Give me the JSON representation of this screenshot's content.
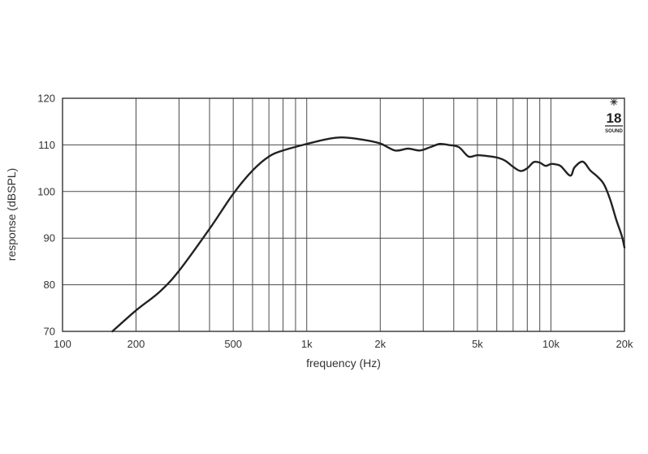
{
  "chart_data": {
    "type": "line",
    "title": "",
    "xlabel": "frequency (Hz)",
    "ylabel": "response (dBSPL)",
    "x_scale": "log",
    "xlim": [
      100,
      20000
    ],
    "ylim": [
      70,
      120
    ],
    "grid": true,
    "legend": "none",
    "x_ticks": [
      {
        "value": 100,
        "label": "100"
      },
      {
        "value": 200,
        "label": "200"
      },
      {
        "value": 500,
        "label": "500"
      },
      {
        "value": 1000,
        "label": "1k"
      },
      {
        "value": 2000,
        "label": "2k"
      },
      {
        "value": 5000,
        "label": "5k"
      },
      {
        "value": 10000,
        "label": "10k"
      },
      {
        "value": 20000,
        "label": "20k"
      }
    ],
    "y_ticks": [
      70,
      80,
      90,
      100,
      110,
      120
    ],
    "series": [
      {
        "color": "#222222",
        "x": [
          160,
          200,
          250,
          300,
          400,
          500,
          600,
          700,
          800,
          1000,
          1200,
          1400,
          1700,
          2000,
          2300,
          2600,
          2900,
          3200,
          3500,
          3800,
          4200,
          4600,
          5000,
          5500,
          6000,
          6500,
          7000,
          7500,
          8000,
          8500,
          9000,
          9500,
          10000,
          10500,
          11000,
          12000,
          12500,
          13500,
          14500,
          15500,
          16500,
          17500,
          18500,
          19500,
          20000
        ],
        "values": [
          70,
          74.5,
          78.5,
          83,
          92,
          99.5,
          104.5,
          107.5,
          108.8,
          110.2,
          111.2,
          111.6,
          111.1,
          110.3,
          108.8,
          109.2,
          108.8,
          109.5,
          110.2,
          110.0,
          109.5,
          107.5,
          107.8,
          107.6,
          107.3,
          106.6,
          105.3,
          104.4,
          105.0,
          106.3,
          106.2,
          105.5,
          105.9,
          105.8,
          105.4,
          103.4,
          105.2,
          106.4,
          104.5,
          103.2,
          101.5,
          98.2,
          94.0,
          90.5,
          88.0
        ]
      }
    ]
  },
  "logo": {
    "number": "18",
    "word": "SOUND"
  }
}
